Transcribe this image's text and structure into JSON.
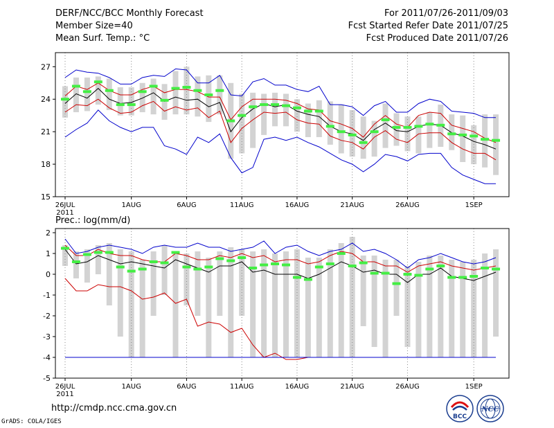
{
  "header": {
    "title": "DERF/NCC/BCC Monthly Forecast",
    "member_size": "Member Size=40",
    "variable": "Mean Surf. Temp.: °C",
    "period": "For 2011/07/26-2011/09/03",
    "fcst_started": "Fcst Started Refer Date 2011/07/25",
    "fcst_produced": "Fcst Produced Date 2011/07/26"
  },
  "footer": {
    "url": "http://cmdp.ncc.cma.gov.cn",
    "credit": "GrADS: COLA/IGES",
    "logo_left_text": "BCC",
    "logo_right_text": "NCC"
  },
  "colors": {
    "ensemble_box": "#d3d3d3",
    "median_bar": "#44ee44",
    "envelope": "#0000cc",
    "spread": "#cc0000",
    "mean": "#000000"
  },
  "chart_data": [
    {
      "type": "line",
      "title": "Mean Surf. Temp.: °C",
      "x": [
        1,
        2,
        3,
        4,
        5,
        6,
        7,
        8,
        9,
        10,
        11,
        12,
        13,
        14,
        15,
        16,
        17,
        18,
        19,
        20,
        21,
        22,
        23,
        24,
        25,
        26,
        27,
        28,
        29,
        30,
        31,
        32,
        33,
        34,
        35,
        36,
        37,
        38,
        39,
        40
      ],
      "xlabel_ticks": [
        {
          "day": 1,
          "label": "26JUL",
          "sub": "2011"
        },
        {
          "day": 7,
          "label": "1AUG"
        },
        {
          "day": 12,
          "label": "6AUG"
        },
        {
          "day": 17,
          "label": "11AUG"
        },
        {
          "day": 22,
          "label": "16AUG"
        },
        {
          "day": 27,
          "label": "21AUG"
        },
        {
          "day": 32,
          "label": "26AUG"
        },
        {
          "day": 38,
          "label": "1SEP"
        }
      ],
      "yticks": [
        15,
        18,
        21,
        24,
        27
      ],
      "ylim": [
        15,
        28.3
      ],
      "box_low": [
        22.3,
        22.8,
        22.9,
        23.5,
        23.0,
        22.5,
        22.5,
        22.8,
        22.6,
        22.1,
        22.6,
        22.6,
        22.4,
        21.9,
        22.6,
        18.5,
        19.0,
        19.5,
        20.7,
        21.5,
        21.5,
        21.0,
        20.5,
        20.5,
        19.8,
        19.0,
        18.7,
        18.5,
        18.7,
        19.5,
        19.7,
        19.2,
        19.0,
        19.5,
        19.6,
        19.3,
        18.2,
        18.0,
        17.7,
        17.0
      ],
      "box_high": [
        25.2,
        26.0,
        26.0,
        26.1,
        25.9,
        25.1,
        25.1,
        25.5,
        25.9,
        25.4,
        26.6,
        27.0,
        26.1,
        26.2,
        26.2,
        25.5,
        24.5,
        24.6,
        24.5,
        24.6,
        24.5,
        24.0,
        23.6,
        23.9,
        23.8,
        23.5,
        23.0,
        22.4,
        22.0,
        23.6,
        22.7,
        22.4,
        22.4,
        22.8,
        23.5,
        22.6,
        22.5,
        21.6,
        22.6,
        22.6
      ],
      "median": [
        24.0,
        25.2,
        24.7,
        25.6,
        24.8,
        23.5,
        23.5,
        24.7,
        25.2,
        23.9,
        25.0,
        25.1,
        24.8,
        24.4,
        24.8,
        22.0,
        22.5,
        23.3,
        23.5,
        23.5,
        23.4,
        23.2,
        22.9,
        22.9,
        21.5,
        21.0,
        20.7,
        20.0,
        21.0,
        22.1,
        21.4,
        21.4,
        21.5,
        21.7,
        21.6,
        20.8,
        20.7,
        20.6,
        20.3,
        20.2
      ],
      "series": [
        {
          "name": "max",
          "values": [
            20.5,
            21.2,
            21.8,
            23.0,
            22.0,
            21.4,
            21.0,
            21.4,
            21.4,
            19.7,
            19.4,
            18.9,
            20.5,
            20.0,
            20.8,
            18.6,
            17.2,
            17.7,
            20.3,
            20.5,
            20.2,
            20.5,
            20.0,
            19.6,
            19.0,
            18.4,
            18.0,
            17.3,
            18.0,
            18.9,
            18.7,
            18.3,
            18.9,
            19.0,
            19.0,
            17.7,
            17.0,
            16.6,
            16.2,
            16.2
          ]
        },
        {
          "name": "min_envelope_top",
          "values": [
            26.0,
            26.7,
            26.5,
            26.4,
            26.0,
            25.4,
            25.4,
            26.0,
            26.2,
            26.1,
            26.8,
            26.7,
            25.5,
            25.5,
            26.2,
            24.4,
            24.3,
            25.6,
            25.9,
            25.3,
            25.3,
            24.9,
            24.7,
            25.2,
            23.5,
            23.5,
            23.3,
            22.5,
            23.4,
            23.8,
            22.8,
            22.8,
            23.6,
            24.0,
            23.8,
            22.9,
            22.8,
            22.7,
            22.3,
            22.3
          ]
        },
        {
          "name": "upper",
          "values": [
            24.3,
            25.2,
            24.9,
            25.5,
            24.8,
            24.4,
            24.4,
            24.9,
            25.2,
            24.6,
            24.9,
            24.9,
            24.7,
            24.2,
            24.2,
            22.1,
            23.3,
            24.0,
            24.0,
            24.0,
            23.9,
            23.6,
            23.1,
            23.0,
            22.0,
            21.7,
            21.3,
            20.5,
            21.7,
            22.5,
            21.7,
            21.4,
            22.5,
            22.8,
            22.7,
            21.6,
            21.3,
            21.0,
            20.4,
            20.0
          ]
        },
        {
          "name": "mean",
          "values": [
            23.6,
            24.5,
            24.1,
            25.0,
            24.0,
            23.6,
            23.7,
            24.1,
            24.6,
            23.8,
            24.2,
            23.9,
            24.0,
            23.3,
            23.7,
            21.0,
            22.3,
            23.1,
            23.6,
            23.3,
            23.5,
            22.9,
            22.6,
            22.4,
            21.5,
            21.0,
            20.8,
            20.2,
            21.2,
            21.8,
            21.1,
            21.0,
            21.5,
            21.7,
            21.6,
            20.9,
            20.6,
            20.1,
            19.8,
            19.4
          ]
        },
        {
          "name": "lower",
          "values": [
            22.8,
            23.5,
            23.4,
            24.0,
            23.2,
            22.7,
            22.8,
            23.4,
            23.8,
            22.9,
            23.3,
            23.0,
            23.2,
            22.3,
            22.9,
            20.0,
            21.3,
            22.1,
            22.8,
            22.7,
            22.8,
            22.1,
            21.8,
            21.7,
            20.6,
            20.2,
            20.0,
            19.4,
            20.5,
            21.1,
            20.3,
            20.0,
            20.8,
            20.9,
            20.9,
            20.0,
            19.4,
            19.0,
            19.0,
            18.4
          ]
        }
      ]
    },
    {
      "type": "line",
      "title": "Prec.: log(mm/d)",
      "x": [
        1,
        2,
        3,
        4,
        5,
        6,
        7,
        8,
        9,
        10,
        11,
        12,
        13,
        14,
        15,
        16,
        17,
        18,
        19,
        20,
        21,
        22,
        23,
        24,
        25,
        26,
        27,
        28,
        29,
        30,
        31,
        32,
        33,
        34,
        35,
        36,
        37,
        38,
        39,
        40
      ],
      "xlabel_ticks": [
        {
          "day": 1,
          "label": "26JUL",
          "sub": "2011"
        },
        {
          "day": 7,
          "label": "1AUG"
        },
        {
          "day": 12,
          "label": "6AUG"
        },
        {
          "day": 17,
          "label": "11AUG"
        },
        {
          "day": 22,
          "label": "16AUG"
        },
        {
          "day": 27,
          "label": "21AUG"
        },
        {
          "day": 32,
          "label": "26AUG"
        },
        {
          "day": 38,
          "label": "1SEP"
        }
      ],
      "yticks": [
        -5,
        -4,
        -3,
        -2,
        -1,
        0,
        1,
        2
      ],
      "ylim": [
        -5,
        2.2
      ],
      "box_low": [
        0.4,
        -0.2,
        -0.4,
        0.0,
        -1.5,
        -3.0,
        -4.0,
        -4.0,
        -2.0,
        -1.0,
        -4.0,
        -1.5,
        -2.0,
        -4.0,
        -2.0,
        -4.0,
        -2.0,
        -4.0,
        -4.0,
        -4.0,
        -4.0,
        -4.0,
        -4.0,
        -4.0,
        -4.0,
        -4.0,
        -4.0,
        -2.5,
        -3.5,
        -4.0,
        -2.0,
        -3.5,
        -4.0,
        -4.0,
        -4.0,
        -4.0,
        -4.0,
        -4.0,
        -4.0,
        -3.0
      ],
      "box_high": [
        1.4,
        1.1,
        1.2,
        1.4,
        1.5,
        1.2,
        1.1,
        0.7,
        1.1,
        1.4,
        1.1,
        1.0,
        1.1,
        0.8,
        1.1,
        1.3,
        1.2,
        1.1,
        1.2,
        1.0,
        1.1,
        1.2,
        0.8,
        0.8,
        1.2,
        1.5,
        1.8,
        0.9,
        0.9,
        0.7,
        0.7,
        0.4,
        0.6,
        0.9,
        0.9,
        0.7,
        0.6,
        0.7,
        1.0,
        1.2
      ],
      "median": [
        1.25,
        0.6,
        0.95,
        1.05,
        1.05,
        0.35,
        0.15,
        0.25,
        0.6,
        0.55,
        1.05,
        0.35,
        0.25,
        0.35,
        0.75,
        0.65,
        0.8,
        0.3,
        0.45,
        0.5,
        0.45,
        -0.15,
        -0.25,
        0.35,
        0.5,
        1.0,
        0.4,
        0.55,
        0.05,
        0.05,
        -0.45,
        0.0,
        -0.05,
        0.25,
        0.4,
        -0.15,
        -0.15,
        -0.1,
        0.3,
        0.25
      ],
      "series": [
        {
          "name": "max",
          "values": [
            1.7,
            1.0,
            1.1,
            1.3,
            1.4,
            1.3,
            1.2,
            1.0,
            1.3,
            1.4,
            1.3,
            1.3,
            1.5,
            1.3,
            1.3,
            1.1,
            1.2,
            1.3,
            1.6,
            1.0,
            1.3,
            1.4,
            1.1,
            0.9,
            1.1,
            1.2,
            1.5,
            1.1,
            1.2,
            1.0,
            0.7,
            0.3,
            0.7,
            0.8,
            1.0,
            0.8,
            0.6,
            0.5,
            0.6,
            0.8
          ]
        },
        {
          "name": "upper",
          "values": [
            1.4,
            0.9,
            0.9,
            1.2,
            1.0,
            0.9,
            0.9,
            0.7,
            0.6,
            0.6,
            1.0,
            0.9,
            0.7,
            0.7,
            0.9,
            0.8,
            1.0,
            0.8,
            0.9,
            0.6,
            0.7,
            0.7,
            0.5,
            0.6,
            0.9,
            1.1,
            1.0,
            0.6,
            0.6,
            0.4,
            0.4,
            0.1,
            0.4,
            0.5,
            0.6,
            0.4,
            0.3,
            0.2,
            0.3,
            0.4
          ]
        },
        {
          "name": "mean",
          "values": [
            1.2,
            0.5,
            0.6,
            0.9,
            0.7,
            0.5,
            0.6,
            0.5,
            0.4,
            0.3,
            0.7,
            0.5,
            0.3,
            0.1,
            0.4,
            0.4,
            0.6,
            0.1,
            0.2,
            0.0,
            0.0,
            0.0,
            -0.2,
            0.0,
            0.3,
            0.6,
            0.4,
            0.1,
            0.2,
            0.0,
            0.0,
            -0.4,
            0.0,
            0.0,
            0.3,
            -0.1,
            -0.2,
            -0.3,
            -0.1,
            0.1
          ]
        },
        {
          "name": "lower",
          "values": [
            -0.2,
            -0.8,
            -0.8,
            -0.5,
            -0.6,
            -0.6,
            -0.8,
            -1.2,
            -1.1,
            -0.9,
            -1.4,
            -1.2,
            -2.5,
            -2.3,
            -2.4,
            -2.8,
            -2.6,
            -3.4,
            -4.0,
            -3.8,
            -4.1,
            -4.1,
            -4.0,
            -4.0,
            -4.0,
            -4.0,
            -4.0,
            -4.0,
            -4.0,
            -4.0,
            -4.0,
            -4.0,
            -4.0,
            -4.0,
            -4.0,
            -4.0,
            -4.0,
            -4.0,
            -4.0,
            -4.0
          ]
        },
        {
          "name": "min",
          "values": [
            -4,
            -4,
            -4,
            -4,
            -4,
            -4,
            -4,
            -4,
            -4,
            -4,
            -4,
            -4,
            -4,
            -4,
            -4,
            -4,
            -4,
            -4,
            -4,
            -4,
            -4,
            -4,
            -4,
            -4,
            -4,
            -4,
            -4,
            -4,
            -4,
            -4,
            -4,
            -4,
            -4,
            -4,
            -4,
            -4,
            -4,
            -4,
            -4,
            -4
          ]
        }
      ]
    }
  ]
}
